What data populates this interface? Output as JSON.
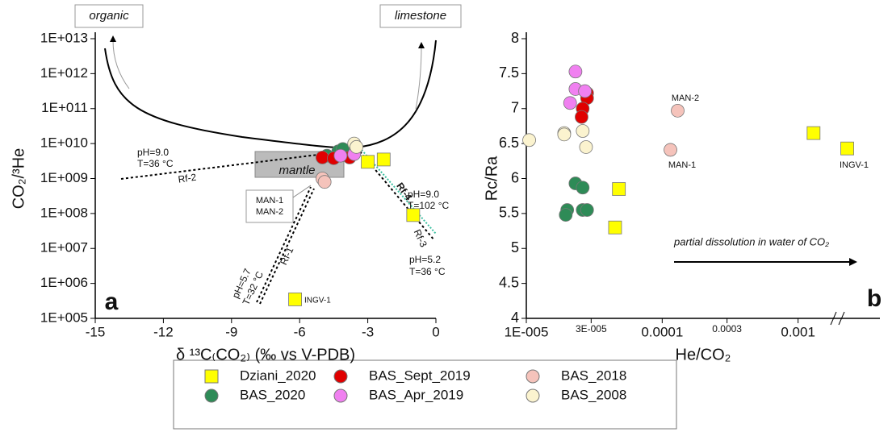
{
  "chart_data": [
    {
      "type": "scatter",
      "xlabel": "δ ¹³C₍CO₂₎ (‰ vs V-PDB)",
      "ylabel": "CO₂/³He",
      "xscale": "linear",
      "yscale": "log",
      "xlim": [
        -15,
        0
      ],
      "xticks": [
        -15,
        -12,
        -9,
        -6,
        -3,
        0
      ],
      "ylim": [
        100000,
        10000000000000
      ],
      "yticks": [
        {
          "value": 100000,
          "label": "1E+005"
        },
        {
          "value": 1000000,
          "label": "1E+006"
        },
        {
          "value": 10000000,
          "label": "1E+007"
        },
        {
          "value": 100000000,
          "label": "1E+008"
        },
        {
          "value": 1000000000,
          "label": "1E+009"
        },
        {
          "value": 10000000000,
          "label": "1E+010"
        },
        {
          "value": 100000000000,
          "label": "1E+011"
        },
        {
          "value": 1000000000000,
          "label": "1E+012"
        },
        {
          "value": 10000000000000,
          "label": "1E+013"
        }
      ],
      "annotations": [
        "organic",
        "limestone",
        "mantle",
        "pH=9.0",
        "T=36 °C",
        "Rf-2",
        "MAN-1",
        "MAN-2",
        "pH=5.7",
        "T=32 °C",
        "Rf-1",
        "INGV-1",
        "Rf-4",
        "pH=9.0",
        "T=102 °C",
        "Rf-3",
        "pH=5.2",
        "T=36 °C",
        "a"
      ],
      "series": [
        {
          "name": "Dziani_2020",
          "color": "#ffff00",
          "marker": "square",
          "x": [
            -3,
            -2.3,
            -1,
            -6.2
          ],
          "values": [
            3000000000,
            3500000000,
            90000000,
            350000
          ]
        },
        {
          "name": "BAS_2020",
          "color": "#2e8b57",
          "marker": "circle",
          "x": [
            -4.8,
            -4.3,
            -4.1
          ],
          "values": [
            4500000000,
            6000000000,
            7000000000
          ]
        },
        {
          "name": "BAS_Sept_2019",
          "color": "#e00000",
          "marker": "circle",
          "x": [
            -5,
            -4.5,
            -3.8
          ],
          "values": [
            4000000000,
            3800000000,
            4000000000
          ]
        },
        {
          "name": "BAS_Apr_2019",
          "color": "#f080f0",
          "marker": "circle",
          "x": [
            -4.2,
            -3.6
          ],
          "values": [
            4500000000,
            5000000000
          ]
        },
        {
          "name": "BAS_2018",
          "color": "#f5c3bb",
          "marker": "circle",
          "x": [
            -5,
            -4.9
          ],
          "values": [
            1000000000,
            800000000
          ]
        },
        {
          "name": "BAS_2008",
          "color": "#fbf3cf",
          "marker": "circle",
          "x": [
            -3.6,
            -3.5
          ],
          "values": [
            10000000000,
            8000000000
          ]
        }
      ]
    },
    {
      "type": "scatter",
      "xlabel": "He/CO₂",
      "ylabel": "Rc/Ra",
      "xscale": "log",
      "yscale": "linear",
      "xlim": [
        1e-05,
        0.004
      ],
      "xticks": [
        {
          "value": 1e-05,
          "label": "1E-005"
        },
        {
          "value": 3e-05,
          "label": "3E-005"
        },
        0.0001,
        0.0003,
        0.001
      ],
      "ylim": [
        4,
        8
      ],
      "yticks": [
        4,
        4.5,
        5,
        5.5,
        6,
        6.5,
        7,
        7.5,
        8
      ],
      "annotations": [
        "MAN-2",
        "MAN-1",
        "INGV-1",
        "partial dissolution in water of CO₂",
        "b"
      ],
      "series": [
        {
          "color": "#ffff00",
          "marker": "square",
          "x": [
            4.8e-05,
            4.5e-05,
            0.0013,
            0.0023
          ],
          "values": [
            5.85,
            5.3,
            6.65,
            6.43
          ]
        },
        {
          "color": "#2e8b57",
          "marker": "circle",
          "x": [
            2.3e-05,
            2.6e-05,
            2e-05,
            1.95e-05,
            2.6e-05,
            2.8e-05
          ],
          "values": [
            5.93,
            5.87,
            5.55,
            5.48,
            5.55,
            5.55
          ]
        },
        {
          "color": "#e00000",
          "marker": "circle",
          "x": [
            2.8e-05,
            2.8e-05,
            2.6e-05,
            2.55e-05
          ],
          "values": [
            7.22,
            7.15,
            7.0,
            6.88
          ]
        },
        {
          "color": "#f080f0",
          "marker": "circle",
          "x": [
            2.3e-05,
            2.3e-05,
            2.1e-05,
            2.7e-05
          ],
          "values": [
            7.53,
            7.28,
            7.08,
            7.25
          ]
        },
        {
          "color": "#f5c3bb",
          "marker": "circle",
          "x": [
            0.00013,
            0.000115
          ],
          "values": [
            6.97,
            6.41
          ]
        },
        {
          "color": "#fbf3cf",
          "marker": "circle",
          "x": [
            1.05e-05,
            1.9e-05,
            1.9e-05,
            2.6e-05,
            2.75e-05
          ],
          "values": [
            6.55,
            6.65,
            6.63,
            6.68,
            6.45
          ]
        }
      ]
    }
  ]
}
